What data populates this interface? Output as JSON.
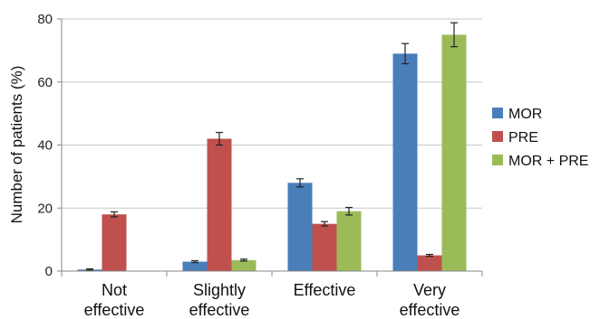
{
  "chart_data": {
    "type": "bar",
    "ylabel": "Number of patients (%)",
    "xlabel": "",
    "title": "",
    "ylim": [
      0,
      80
    ],
    "yticks": [
      0,
      20,
      40,
      60,
      80
    ],
    "grid": true,
    "legend_position": "right",
    "categories": [
      [
        "Not",
        "effective"
      ],
      [
        "Slightly",
        "effective"
      ],
      [
        "Effective"
      ],
      [
        "Very",
        "effective"
      ]
    ],
    "series": [
      {
        "name": "MOR",
        "color": "#4a7ebb",
        "values": [
          0.5,
          3,
          28,
          69
        ],
        "errors": [
          0.2,
          0.3,
          1.3,
          3.2
        ]
      },
      {
        "name": "PRE",
        "color": "#c0504d",
        "values": [
          18,
          42,
          15,
          5
        ],
        "errors": [
          0.8,
          2.0,
          0.7,
          0.3
        ]
      },
      {
        "name": "MOR + PRE",
        "color": "#9bbb59",
        "values": [
          0,
          3.5,
          19,
          75
        ],
        "errors": [
          0,
          0.3,
          1.2,
          3.8
        ]
      }
    ]
  }
}
